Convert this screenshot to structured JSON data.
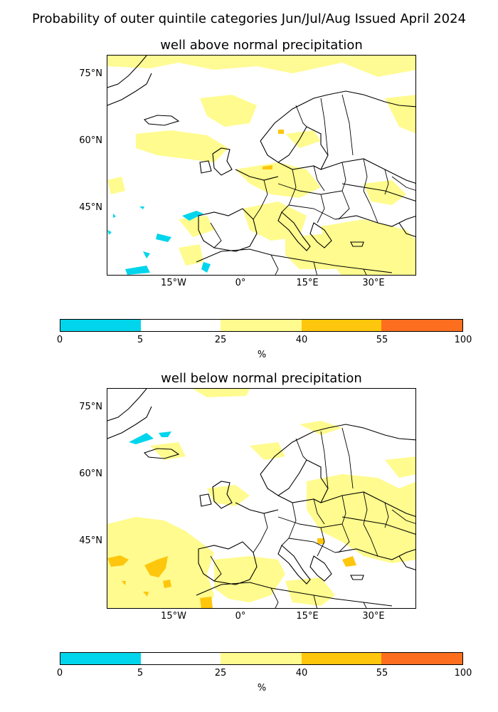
{
  "suptitle": "Probability of outer quintile categories Jun/Jul/Aug Issued April 2024",
  "maps": [
    {
      "title": "well above normal precipitation"
    },
    {
      "title": "well below normal precipitation"
    }
  ],
  "axes": {
    "lat_labels": [
      "75°N",
      "60°N",
      "45°N"
    ],
    "lon_labels": [
      "15°W",
      "0°",
      "15°E",
      "30°E"
    ]
  },
  "colorbar": {
    "ticks": [
      "0",
      "5",
      "25",
      "40",
      "55",
      "100"
    ],
    "unit": "%",
    "segments": [
      {
        "range": "0-5",
        "color": "#00d5ec"
      },
      {
        "range": "5-25",
        "color": "#ffffff"
      },
      {
        "range": "25-40",
        "color": "#fffb8e"
      },
      {
        "range": "40-55",
        "color": "#fec60c"
      },
      {
        "range": "55-100",
        "color": "#fd6f1e"
      }
    ]
  }
}
